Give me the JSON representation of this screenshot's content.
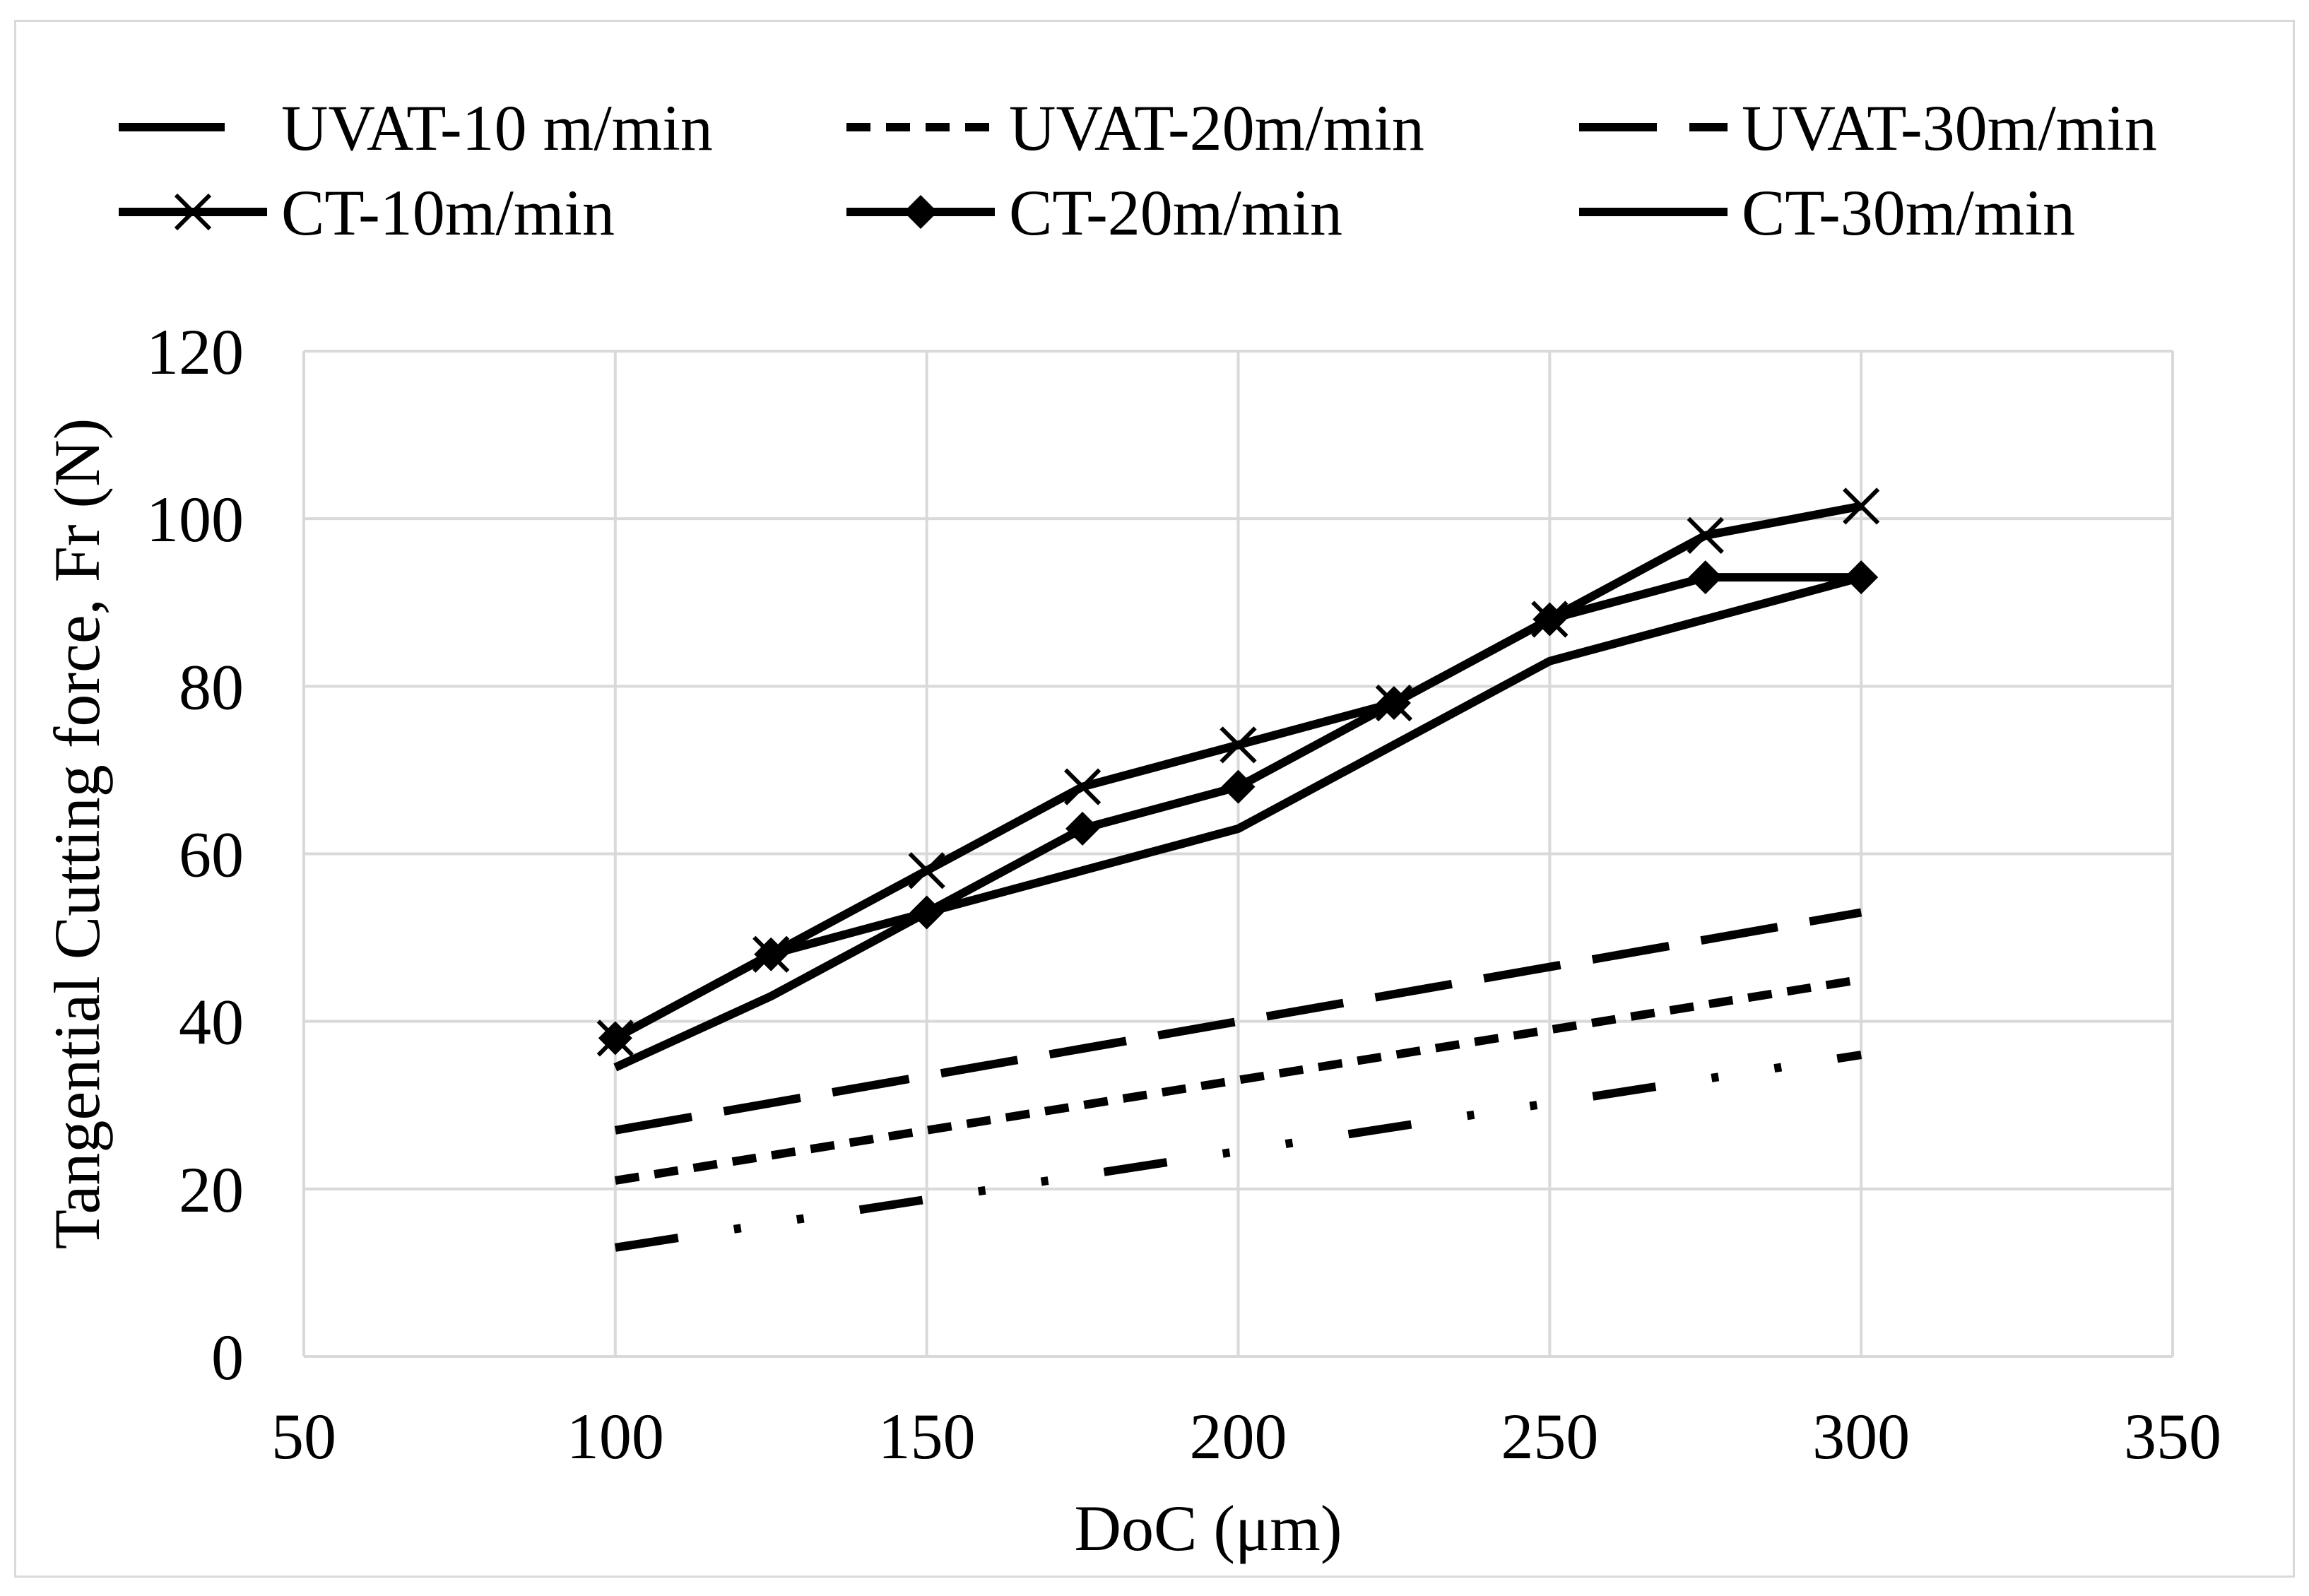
{
  "chart_data": {
    "type": "line",
    "title": "",
    "xlabel": "DoC (μm)",
    "ylabel": "Tangential Cutting force, Fr (N)",
    "xlim": [
      50,
      350
    ],
    "ylim": [
      0,
      120
    ],
    "xticks": [
      "50",
      "100",
      "150",
      "200",
      "250",
      "300",
      "350"
    ],
    "yticks": [
      "0",
      "20",
      "40",
      "60",
      "80",
      "100",
      "120"
    ],
    "grid": true,
    "legend_position": "top",
    "series": [
      {
        "name": "UVAT-10 m/min",
        "style": "dash-dot-dot",
        "marker": "none",
        "x": [
          100,
          300
        ],
        "y": [
          13,
          36
        ]
      },
      {
        "name": "UVAT-20m/min",
        "style": "short-dash",
        "marker": "none",
        "x": [
          100,
          300
        ],
        "y": [
          21,
          45
        ]
      },
      {
        "name": "UVAT-30m/min",
        "style": "long-dash",
        "marker": "none",
        "x": [
          100,
          300
        ],
        "y": [
          27,
          53
        ]
      },
      {
        "name": "CT-10m/min",
        "style": "solid",
        "marker": "x",
        "x": [
          100,
          125,
          150,
          175,
          200,
          225,
          250,
          275,
          300
        ],
        "y": [
          38,
          48,
          58,
          68,
          73,
          78,
          88,
          98,
          101.5
        ]
      },
      {
        "name": "CT-20m/min",
        "style": "solid",
        "marker": "diamond",
        "x": [
          100,
          125,
          150,
          175,
          200,
          225,
          250,
          275,
          300
        ],
        "y": [
          38,
          48,
          53,
          63,
          68,
          78,
          88,
          93,
          93
        ]
      },
      {
        "name": "CT-30m/min",
        "style": "solid",
        "marker": "none",
        "x": [
          100,
          125,
          150,
          175,
          200,
          225,
          250,
          275,
          300
        ],
        "y": [
          34.5,
          43,
          53,
          58,
          63,
          73,
          83,
          88,
          93
        ]
      }
    ],
    "colors": {
      "line": "#000000",
      "grid": "#d9d9d9",
      "frame": "#d9d9d9"
    }
  }
}
